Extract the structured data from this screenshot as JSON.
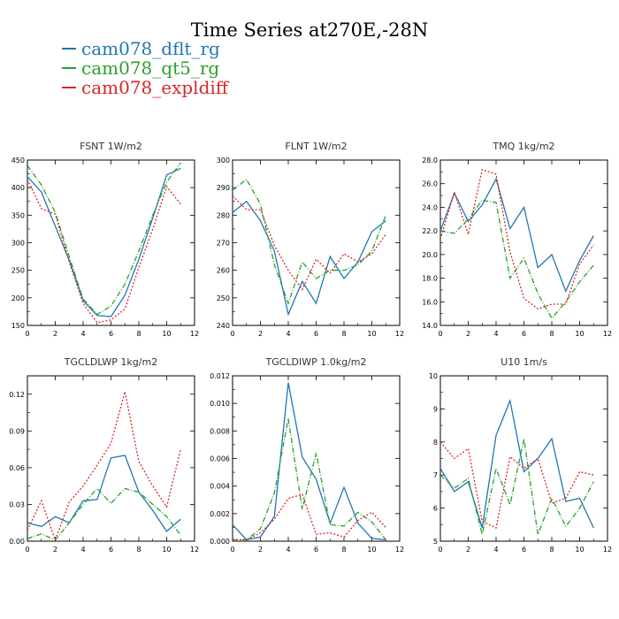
{
  "figure": {
    "title": "Time Series at270E,-28N",
    "legend": [
      {
        "label": "cam078_dflt_rg",
        "color": "#1f77b4"
      },
      {
        "label": "cam078_qt5_rg",
        "color": "#2ca02c"
      },
      {
        "label": "cam078_expldiff",
        "color": "#d62728"
      }
    ]
  },
  "chart_data": [
    {
      "type": "line",
      "title": "FSNT   1W/m2",
      "x": [
        0,
        1,
        2,
        3,
        4,
        5,
        6,
        7,
        8,
        9,
        10,
        11
      ],
      "xlim": [
        0,
        12
      ],
      "xticks": [
        "0",
        "2",
        "4",
        "6",
        "8",
        "10",
        "12"
      ],
      "ylim": [
        150,
        450
      ],
      "yticks": [
        "150",
        "200",
        "250",
        "300",
        "350",
        "400",
        "450"
      ],
      "series": [
        {
          "name": "cam078_dflt_rg",
          "color": "#1f77b4",
          "dash": "solid",
          "values": [
            420,
            392,
            330,
            268,
            195,
            168,
            166,
            205,
            270,
            345,
            423,
            435
          ]
        },
        {
          "name": "cam078_qt5_rg",
          "color": "#2ca02c",
          "dash": "dashdot",
          "values": [
            440,
            405,
            355,
            275,
            198,
            170,
            185,
            225,
            285,
            350,
            410,
            445
          ]
        },
        {
          "name": "cam078_expldiff",
          "color": "#d62728",
          "dash": "dot",
          "values": [
            415,
            362,
            352,
            265,
            190,
            155,
            160,
            180,
            255,
            325,
            402,
            370
          ]
        }
      ]
    },
    {
      "type": "line",
      "title": "FLNT   1W/m2",
      "x": [
        0,
        1,
        2,
        3,
        4,
        5,
        6,
        7,
        8,
        9,
        10,
        11
      ],
      "xlim": [
        0,
        12
      ],
      "xticks": [
        "0",
        "2",
        "4",
        "6",
        "8",
        "10",
        "12"
      ],
      "ylim": [
        240,
        300
      ],
      "yticks": [
        "240",
        "250",
        "260",
        "270",
        "280",
        "290",
        "300"
      ],
      "series": [
        {
          "name": "cam078_dflt_rg",
          "color": "#1f77b4",
          "dash": "solid",
          "values": [
            281,
            285,
            278,
            267,
            244,
            256,
            248,
            265,
            257,
            263,
            274,
            278
          ]
        },
        {
          "name": "cam078_qt5_rg",
          "color": "#2ca02c",
          "dash": "dashdot",
          "values": [
            289,
            293,
            284,
            262,
            248,
            263,
            257,
            260,
            260,
            262,
            267,
            280
          ]
        },
        {
          "name": "cam078_expldiff",
          "color": "#d62728",
          "dash": "dot",
          "values": [
            287,
            282,
            282,
            269,
            260,
            253,
            264,
            259,
            266,
            263,
            266,
            273
          ]
        }
      ]
    },
    {
      "type": "line",
      "title": "TMQ   1kg/m2",
      "x": [
        0,
        1,
        2,
        3,
        4,
        5,
        6,
        7,
        8,
        9,
        10,
        11
      ],
      "xlim": [
        0,
        12
      ],
      "xticks": [
        "0",
        "2",
        "4",
        "6",
        "8",
        "10",
        "12"
      ],
      "ylim": [
        14,
        28
      ],
      "yticks": [
        "14.0",
        "16.0",
        "18.0",
        "20.0",
        "22.0",
        "24.0",
        "26.0",
        "28.0"
      ],
      "series": [
        {
          "name": "cam078_dflt_rg",
          "color": "#1f77b4",
          "dash": "solid",
          "values": [
            22.0,
            25.2,
            22.8,
            24.2,
            26.4,
            22.2,
            24.0,
            18.9,
            20.0,
            16.9,
            19.5,
            21.6
          ]
        },
        {
          "name": "cam078_qt5_rg",
          "color": "#2ca02c",
          "dash": "dashdot",
          "values": [
            22.0,
            21.8,
            23.0,
            24.6,
            24.4,
            18.0,
            19.7,
            16.7,
            14.6,
            16.0,
            17.7,
            19.1
          ]
        },
        {
          "name": "cam078_expldiff",
          "color": "#d62728",
          "dash": "dot",
          "values": [
            21.3,
            25.3,
            21.7,
            27.2,
            26.8,
            20.2,
            16.3,
            15.4,
            15.8,
            15.8,
            19.2,
            20.8
          ]
        }
      ]
    },
    {
      "type": "line",
      "title": "TGCLDLWP   1kg/m2",
      "x": [
        0,
        1,
        2,
        3,
        4,
        5,
        6,
        7,
        8,
        9,
        10,
        11
      ],
      "xlim": [
        0,
        12
      ],
      "xticks": [
        "0",
        "2",
        "4",
        "6",
        "8",
        "10",
        "12"
      ],
      "ylim": [
        0,
        0.135
      ],
      "yticks": [
        "0.00",
        "0.03",
        "0.06",
        "0.09",
        "0.12"
      ],
      "yticks_values": [
        0,
        0.03,
        0.06,
        0.09,
        0.12
      ],
      "series": [
        {
          "name": "cam078_dflt_rg",
          "color": "#1f77b4",
          "dash": "solid",
          "values": [
            0.015,
            0.012,
            0.02,
            0.015,
            0.033,
            0.034,
            0.068,
            0.07,
            0.04,
            0.025,
            0.008,
            0.018
          ]
        },
        {
          "name": "cam078_qt5_rg",
          "color": "#2ca02c",
          "dash": "dashdot",
          "values": [
            0.002,
            0.006,
            0.001,
            0.015,
            0.03,
            0.043,
            0.031,
            0.043,
            0.04,
            0.03,
            0.02,
            0.005
          ]
        },
        {
          "name": "cam078_expldiff",
          "color": "#d62728",
          "dash": "dot",
          "values": [
            0.009,
            0.033,
            0.001,
            0.032,
            0.045,
            0.062,
            0.08,
            0.122,
            0.065,
            0.045,
            0.028,
            0.075
          ]
        }
      ]
    },
    {
      "type": "line",
      "title": "TGCLDIWP   1.0kg/m2",
      "x": [
        0,
        1,
        2,
        3,
        4,
        5,
        6,
        7,
        8,
        9,
        10,
        11
      ],
      "xlim": [
        0,
        12
      ],
      "xticks": [
        "0",
        "2",
        "4",
        "6",
        "8",
        "10",
        "12"
      ],
      "ylim": [
        0,
        0.012
      ],
      "yticks": [
        "0.000",
        "0.002",
        "0.004",
        "0.006",
        "0.008",
        "0.010",
        "0.012"
      ],
      "series": [
        {
          "name": "cam078_dflt_rg",
          "color": "#1f77b4",
          "dash": "solid",
          "values": [
            0.0012,
            0.0001,
            0.0003,
            0.0018,
            0.0115,
            0.0061,
            0.0045,
            0.0013,
            0.0039,
            0.0013,
            0.0002,
            0.0001
          ]
        },
        {
          "name": "cam078_qt5_rg",
          "color": "#2ca02c",
          "dash": "dashdot",
          "values": [
            0.0001,
            0.0001,
            0.0009,
            0.0035,
            0.0089,
            0.0023,
            0.0064,
            0.0012,
            0.0011,
            0.0021,
            0.0014,
            0.0001
          ]
        },
        {
          "name": "cam078_expldiff",
          "color": "#d62728",
          "dash": "dot",
          "values": [
            0.0001,
            0.0001,
            0.0006,
            0.0016,
            0.0031,
            0.0034,
            0.0005,
            0.0006,
            0.0003,
            0.0015,
            0.0021,
            0.001
          ]
        }
      ]
    },
    {
      "type": "line",
      "title": "U10   1m/s",
      "x": [
        0,
        1,
        2,
        3,
        4,
        5,
        6,
        7,
        8,
        9,
        10,
        11
      ],
      "xlim": [
        0,
        12
      ],
      "xticks": [
        "0",
        "2",
        "4",
        "6",
        "8",
        "10",
        "12"
      ],
      "ylim": [
        5,
        10
      ],
      "yticks": [
        "5",
        "6",
        "7",
        "8",
        "9",
        "10"
      ],
      "series": [
        {
          "name": "cam078_dflt_rg",
          "color": "#1f77b4",
          "dash": "solid",
          "values": [
            7.2,
            6.5,
            6.8,
            5.4,
            8.2,
            9.25,
            7.1,
            7.5,
            8.1,
            6.2,
            6.3,
            5.4
          ]
        },
        {
          "name": "cam078_qt5_rg",
          "color": "#2ca02c",
          "dash": "dashdot",
          "values": [
            7.0,
            6.6,
            6.9,
            5.2,
            7.2,
            6.1,
            8.1,
            5.2,
            6.3,
            5.45,
            6.0,
            6.8
          ]
        },
        {
          "name": "cam078_expldiff",
          "color": "#d62728",
          "dash": "dot",
          "values": [
            8.0,
            7.5,
            7.8,
            5.6,
            5.4,
            7.55,
            7.2,
            7.5,
            6.15,
            6.3,
            7.1,
            7.0
          ]
        }
      ]
    }
  ]
}
